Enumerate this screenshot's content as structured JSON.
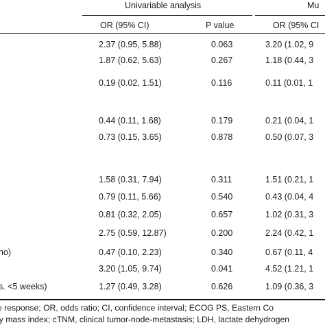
{
  "table": {
    "group_headers": {
      "univariable": "Univariable analysis",
      "multivariable_partial": "Mu"
    },
    "column_headers": {
      "uni_or": "OR (95% CI)",
      "uni_p": "P value",
      "multi_or": "OR (95% CI"
    },
    "rows": [
      {
        "label": "",
        "uni_or": "2.37 (0.95, 5.88)",
        "uni_p": "0.063",
        "multi_or": "3.20 (1.02, 9"
      },
      {
        "label": "",
        "uni_or": "1.87 (0.62, 5.63)",
        "uni_p": "0.267",
        "multi_or": "1.18 (0.44, 3"
      },
      {
        "label": "",
        "uni_or": "0.19 (0.02, 1.51)",
        "uni_p": "0.116",
        "multi_or": "0.11 (0.01, 1"
      },
      {
        "label": "",
        "uni_or": "0.44 (0.11, 1.68)",
        "uni_p": "0.179",
        "multi_or": "0.21 (0.04, 1"
      },
      {
        "label": "",
        "uni_or": "0.73 (0.15, 3.65)",
        "uni_p": "0.878",
        "multi_or": "0.50 (0.07, 3"
      },
      {
        "label": "",
        "uni_or": "1.58 (0.31, 7.94)",
        "uni_p": "0.311",
        "multi_or": "1.51 (0.21, 1"
      },
      {
        "label": "",
        "uni_or": "0.79 (0.11, 5.66)",
        "uni_p": "0.540",
        "multi_or": "0.43 (0.04, 4"
      },
      {
        "label": "",
        "uni_or": "0.81 (0.32, 2.05)",
        "uni_p": "0.657",
        "multi_or": "1.02 (0.31, 3"
      },
      {
        "label": "",
        "uni_or": "2.75 (0.59, 12.87)",
        "uni_p": "0.200",
        "multi_or": "2.24 (0.42, 1"
      },
      {
        "label": "no)",
        "uni_or": "0.47 (0.10, 2.23)",
        "uni_p": "0.340",
        "multi_or": "0.67 (0.11, 4"
      },
      {
        "label": "",
        "uni_or": "3.20 (1.05, 9.74)",
        "uni_p": "0.041",
        "multi_or": "4.52 (1.21, 1"
      },
      {
        "label": "s. <5 weeks)",
        "uni_or": "1.27 (0.49, 3.28)",
        "uni_p": "0.626",
        "multi_or": "1.09 (0.36, 3"
      }
    ]
  },
  "footnote": {
    "line1": "e response; OR, odds ratio; CI, confidence interval; ECOG PS, Eastern Co",
    "line2": "ly mass index; cTNM, clinical tumor-node-metastasis; LDH, lactate dehydrogen"
  }
}
